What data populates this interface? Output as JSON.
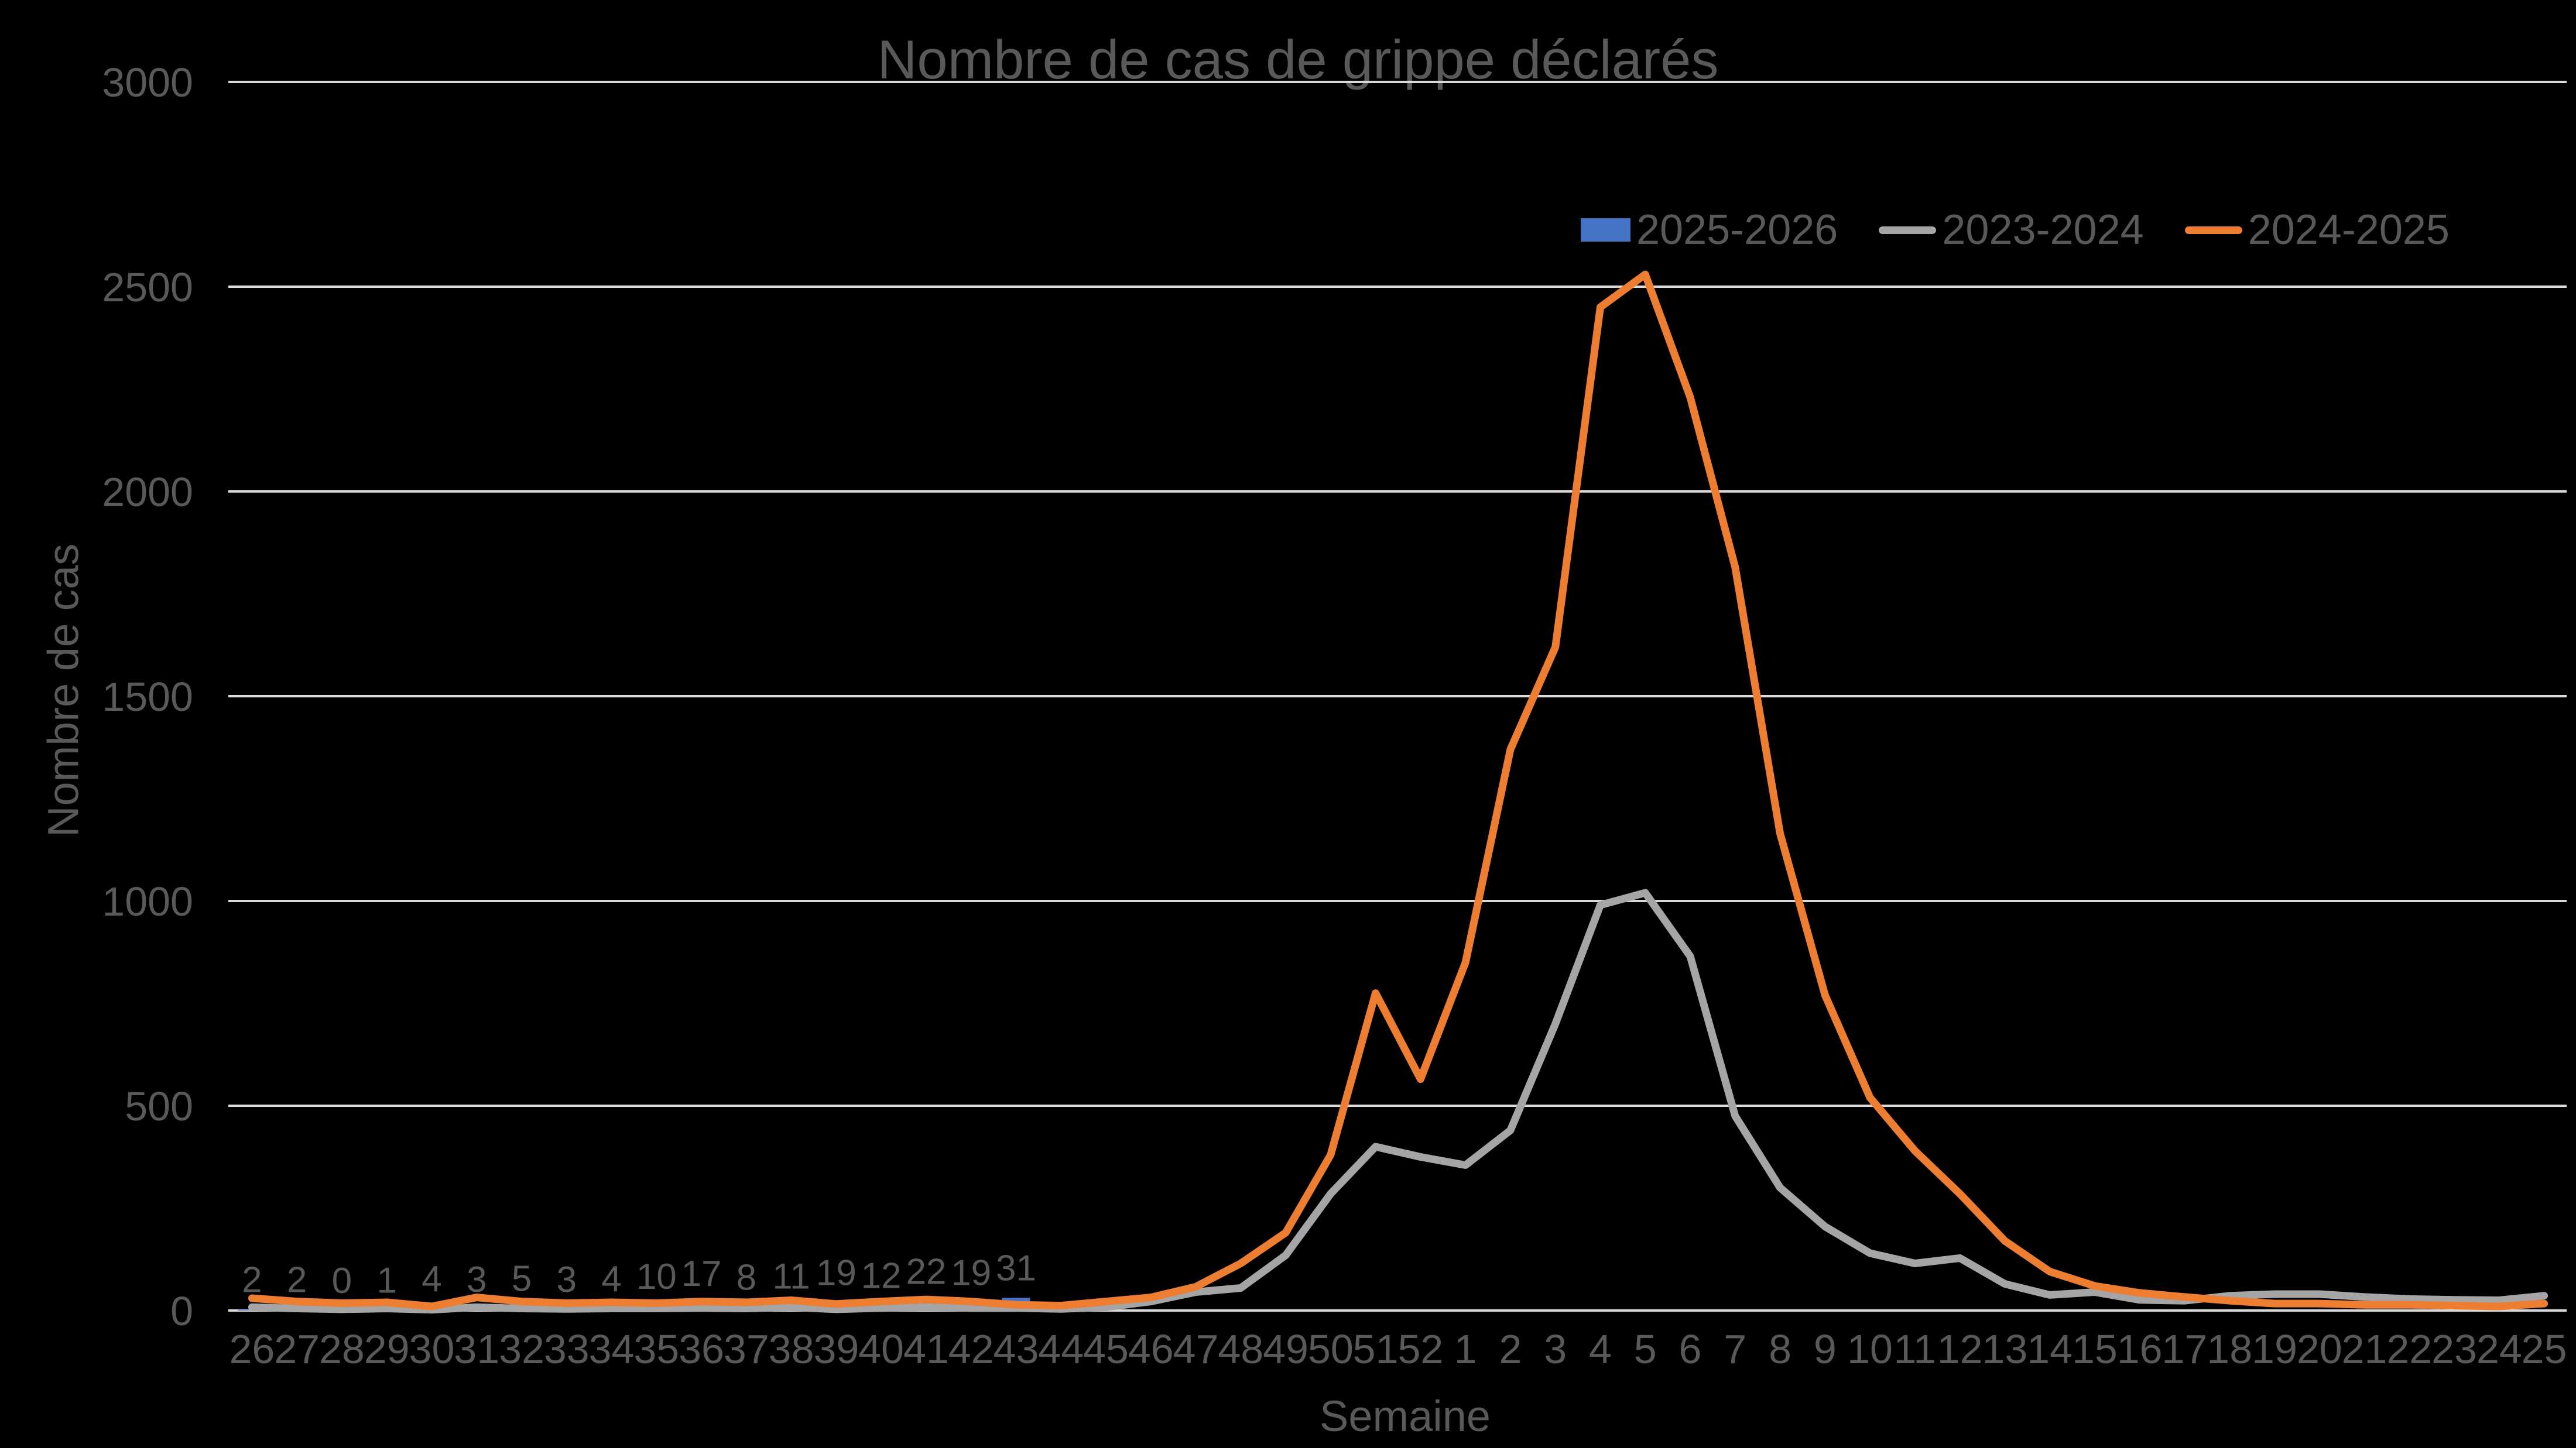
{
  "title": "Nombre de cas de grippe déclarés",
  "y_axis_title": "Nombre de cas",
  "x_axis_title": "Semaine",
  "legend": [
    {
      "label": "2025-2026",
      "color": "#4472C4",
      "swatch": "rect"
    },
    {
      "label": "2023-2024",
      "color": "#A5A5A5",
      "swatch": "line"
    },
    {
      "label": "2024-2025",
      "color": "#ED7D31",
      "swatch": "line"
    }
  ],
  "colors": {
    "background": "#000000",
    "text": "#595959",
    "gridline": "#D9D9D9",
    "series_blue": "#4472C4",
    "series_gray": "#A5A5A5",
    "series_orange": "#ED7D31"
  },
  "chart_data": {
    "type": "bar+line combo",
    "title": "Nombre de cas de grippe déclarés",
    "xlabel": "Semaine",
    "ylabel": "Nombre de cas",
    "ylim": [
      0,
      3000
    ],
    "y_ticks": [
      0,
      500,
      1000,
      1500,
      2000,
      2500,
      3000
    ],
    "grid": "horizontal",
    "legend_position": "top-right-inside",
    "categories": [
      "26",
      "27",
      "28",
      "29",
      "30",
      "31",
      "32",
      "33",
      "34",
      "35",
      "36",
      "37",
      "38",
      "39",
      "40",
      "41",
      "42",
      "43",
      "44",
      "45",
      "46",
      "47",
      "48",
      "49",
      "50",
      "51",
      "52",
      "1",
      "2",
      "3",
      "4",
      "5",
      "6",
      "7",
      "8",
      "9",
      "10",
      "11",
      "12",
      "13",
      "14",
      "15",
      "16",
      "17",
      "18",
      "19",
      "20",
      "21",
      "22",
      "23",
      "24",
      "25"
    ],
    "series": [
      {
        "name": "2025-2026",
        "type": "bar",
        "color": "#4472C4",
        "data_labels": true,
        "values": [
          2,
          2,
          0,
          1,
          4,
          3,
          5,
          3,
          4,
          10,
          17,
          8,
          11,
          19,
          12,
          22,
          19,
          31,
          null,
          null,
          null,
          null,
          null,
          null,
          null,
          null,
          null,
          null,
          null,
          null,
          null,
          null,
          null,
          null,
          null,
          null,
          null,
          null,
          null,
          null,
          null,
          null,
          null,
          null,
          null,
          null,
          null,
          null,
          null,
          null,
          null,
          null
        ]
      },
      {
        "name": "2023-2024",
        "type": "line",
        "color": "#A5A5A5",
        "values": [
          8,
          5,
          3,
          5,
          2,
          8,
          5,
          4,
          5,
          5,
          6,
          5,
          8,
          3,
          6,
          8,
          6,
          6,
          4,
          8,
          22,
          45,
          55,
          135,
          285,
          400,
          375,
          355,
          440,
          700,
          990,
          1020,
          865,
          475,
          300,
          205,
          140,
          115,
          128,
          65,
          38,
          45,
          26,
          24,
          36,
          40,
          40,
          33,
          28,
          26,
          25,
          36
        ]
      },
      {
        "name": "2024-2025",
        "type": "line",
        "color": "#ED7D31",
        "values": [
          30,
          22,
          18,
          20,
          10,
          32,
          22,
          18,
          20,
          18,
          22,
          20,
          25,
          16,
          22,
          27,
          22,
          14,
          12,
          22,
          32,
          58,
          115,
          190,
          380,
          775,
          565,
          850,
          1370,
          1620,
          2450,
          2530,
          2230,
          1815,
          1165,
          770,
          520,
          390,
          285,
          170,
          95,
          60,
          43,
          33,
          24,
          17,
          17,
          14,
          14,
          12,
          10,
          17
        ]
      }
    ]
  }
}
